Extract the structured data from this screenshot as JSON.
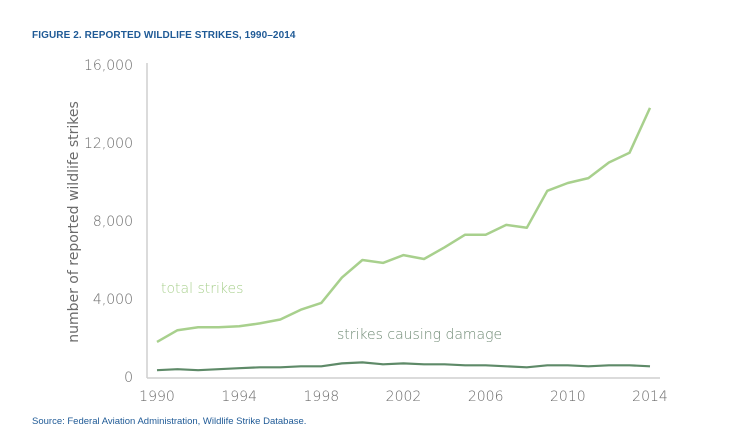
{
  "title": "FIGURE 2. REPORTED WILDLIFE STRIKES, 1990–2014",
  "source": "Source: Federal Aviation Administration, Wildlife Strike Database.",
  "chart_data": {
    "type": "line",
    "title": "FIGURE 2. REPORTED WILDLIFE STRIKES, 1990–2014",
    "xlabel": "",
    "ylabel": "number of reported wildlife strikes",
    "x": [
      1990,
      1991,
      1992,
      1993,
      1994,
      1995,
      1996,
      1997,
      1998,
      1999,
      2000,
      2001,
      2002,
      2003,
      2004,
      2005,
      2006,
      2007,
      2008,
      2009,
      2010,
      2011,
      2012,
      2013,
      2014
    ],
    "xlim": [
      1990,
      2014
    ],
    "ylim": [
      0,
      16000
    ],
    "xticks": [
      1990,
      1994,
      1998,
      2002,
      2006,
      2010,
      2014
    ],
    "yticks": [
      0,
      4000,
      8000,
      12000,
      16000
    ],
    "ytick_labels": [
      "0",
      "4,000",
      "8,000",
      "12,000",
      "16,000"
    ],
    "xtick_labels": [
      "1990",
      "1994",
      "1998",
      "2002",
      "2006",
      "2010",
      "2014"
    ],
    "grid": false,
    "series": [
      {
        "name": "total strikes",
        "color": "#a8d08d",
        "values": [
          1800,
          2400,
          2550,
          2550,
          2600,
          2750,
          2950,
          3450,
          3800,
          5100,
          6000,
          5850,
          6250,
          6050,
          6650,
          7300,
          7300,
          7800,
          7650,
          9550,
          9950,
          10200,
          11000,
          11500,
          13800
        ]
      },
      {
        "name": "strikes causing damage",
        "color": "#5e8a68",
        "values": [
          350,
          400,
          350,
          400,
          450,
          500,
          500,
          550,
          550,
          700,
          750,
          650,
          700,
          650,
          650,
          600,
          600,
          550,
          500,
          600,
          600,
          550,
          600,
          600,
          550
        ]
      }
    ]
  }
}
